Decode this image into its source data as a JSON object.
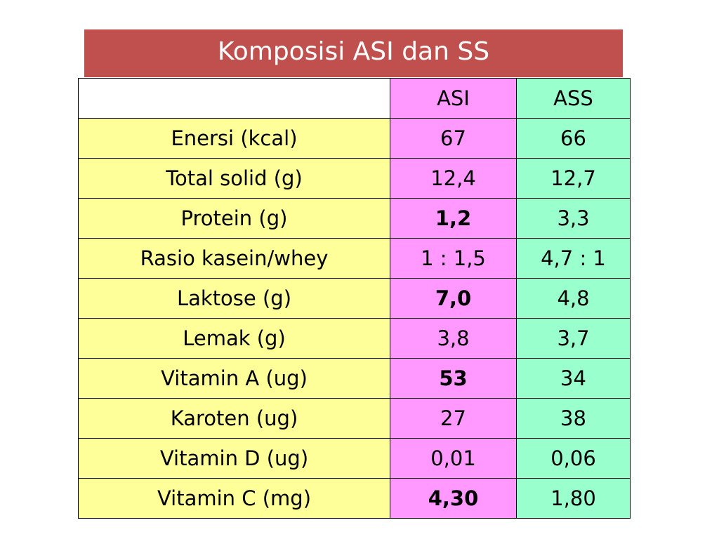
{
  "title": "Komposisi ASI dan SS",
  "colors": {
    "title_bg": "#c0504d",
    "label_bg": "#ffff99",
    "asi_bg": "#ff99ff",
    "ass_bg": "#99ffcc"
  },
  "table": {
    "headers": [
      "",
      "ASI",
      "ASS"
    ],
    "rows": [
      {
        "label": "Enersi  (kcal)",
        "asi": "67",
        "ass": "66",
        "asi_bold": false
      },
      {
        "label": "Total solid (g)",
        "asi": "12,4",
        "ass": "12,7",
        "asi_bold": false
      },
      {
        "label": "Protein (g)",
        "asi": "1,2",
        "ass": "3,3",
        "asi_bold": true
      },
      {
        "label": "Rasio kasein/whey",
        "asi": "1 : 1,5",
        "ass": "4,7 : 1",
        "asi_bold": false
      },
      {
        "label": "Laktose (g)",
        "asi": "7,0",
        "ass": "4,8",
        "asi_bold": true
      },
      {
        "label": "Lemak (g)",
        "asi": "3,8",
        "ass": "3,7",
        "asi_bold": false
      },
      {
        "label": "Vitamin A (ug)",
        "asi": "53",
        "ass": "34",
        "asi_bold": true
      },
      {
        "label": "Karoten (ug)",
        "asi": "27",
        "ass": "38",
        "asi_bold": false
      },
      {
        "label": "Vitamin D (ug)",
        "asi": "0,01",
        "ass": "0,06",
        "asi_bold": false
      },
      {
        "label": "Vitamin C (mg)",
        "asi": "4,30",
        "ass": "1,80",
        "asi_bold": true
      }
    ]
  }
}
